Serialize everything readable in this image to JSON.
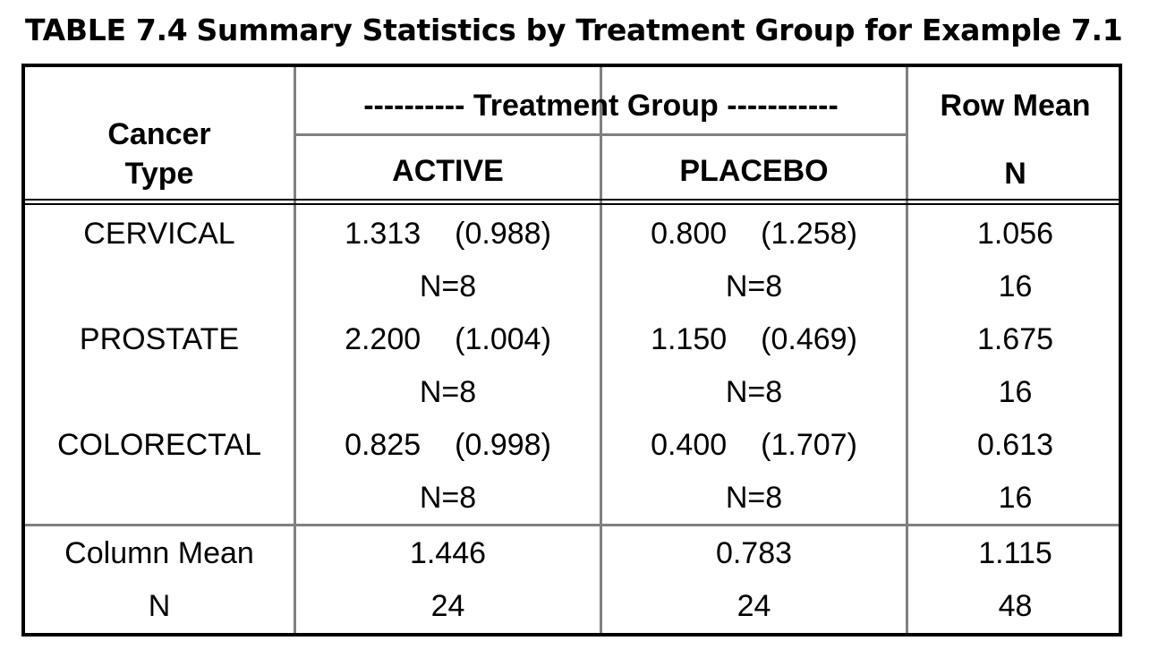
{
  "caption": {
    "number": "TABLE 7.4",
    "title": "Summary Statistics by Treatment Group for Example 7.1"
  },
  "header": {
    "row_label_line1": "Cancer",
    "row_label_line2": "Type",
    "group_span": "---------- Treatment Group -----------",
    "groups": [
      "ACTIVE",
      "PLACEBO"
    ],
    "row_mean": "Row Mean",
    "row_n": "N"
  },
  "rows": [
    {
      "type": "CERVICAL",
      "active": {
        "mean": "1.313",
        "sd": "(0.988)",
        "n": "N=8"
      },
      "placebo": {
        "mean": "0.800",
        "sd": "(1.258)",
        "n": "N=8"
      },
      "row_mean": "1.056",
      "row_n": "16"
    },
    {
      "type": "PROSTATE",
      "active": {
        "mean": "2.200",
        "sd": "(1.004)",
        "n": "N=8"
      },
      "placebo": {
        "mean": "1.150",
        "sd": "(0.469)",
        "n": "N=8"
      },
      "row_mean": "1.675",
      "row_n": "16"
    },
    {
      "type": "COLORECTAL",
      "active": {
        "mean": "0.825",
        "sd": "(0.998)",
        "n": "N=8"
      },
      "placebo": {
        "mean": "0.400",
        "sd": "(1.707)",
        "n": "N=8"
      },
      "row_mean": "0.613",
      "row_n": "16"
    }
  ],
  "footer": {
    "mean_label": "Column Mean",
    "n_label": "N",
    "active_mean": "1.446",
    "placebo_mean": "0.783",
    "overall_mean": "1.115",
    "active_n": "24",
    "placebo_n": "24",
    "overall_n": "48"
  }
}
